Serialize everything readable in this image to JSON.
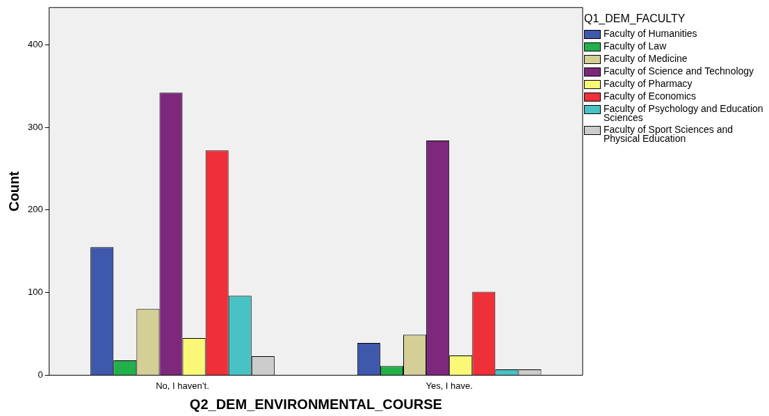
{
  "chart_data": {
    "type": "bar",
    "xlabel": "Q2_DEM_ENVIRONMENTAL_COURSE",
    "ylabel": "Count",
    "legend_title": "Q1_DEM_FACULTY",
    "legend": "right",
    "grid": false,
    "categories": [
      "No, I haven’t.",
      "Yes, I have."
    ],
    "ylim": [
      0,
      445
    ],
    "yticks": [
      0,
      100,
      200,
      300,
      400
    ],
    "series": [
      {
        "name": "Faculty of Humanities",
        "color": "#3e58ac",
        "values": [
          155,
          39
        ]
      },
      {
        "name": "Faculty of Law",
        "color": "#22b04a",
        "values": [
          18,
          11
        ]
      },
      {
        "name": "Faculty of Medicine",
        "color": "#d4ce97",
        "values": [
          80,
          49
        ]
      },
      {
        "name": "Faculty of Science and Technology",
        "color": "#7d287d",
        "values": [
          342,
          284
        ]
      },
      {
        "name": "Faculty of Pharmacy",
        "color": "#fbf877",
        "values": [
          45,
          24
        ]
      },
      {
        "name": "Faculty of Economics",
        "color": "#ef3038",
        "values": [
          272,
          101
        ]
      },
      {
        "name": "Faculty of Psychology and Education Sciences",
        "color": "#48c2c5",
        "values": [
          96,
          7
        ]
      },
      {
        "name": "Faculty of Sport Sciences and Physical Education",
        "color": "#cccccc",
        "values": [
          23,
          7
        ]
      }
    ]
  }
}
